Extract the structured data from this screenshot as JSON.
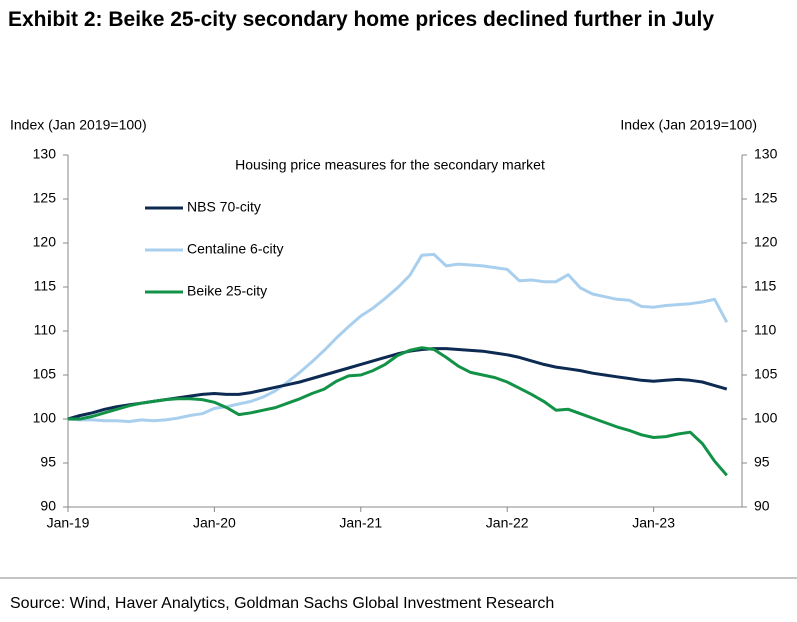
{
  "chart_data": {
    "type": "line",
    "title": "Exhibit 2: Beike 25-city secondary home prices declined further in July",
    "annotation": "Housing price measures for the secondary market",
    "ylabel": "Index (Jan 2019=100)",
    "y2label": "Index (Jan 2019=100)",
    "source": "Source: Wind, Haver Analytics, Goldman Sachs Global Investment Research",
    "categories": [
      "Jan-19",
      null,
      null,
      null,
      null,
      null,
      null,
      null,
      null,
      null,
      null,
      null,
      "Jan-20",
      null,
      null,
      null,
      null,
      null,
      null,
      null,
      null,
      null,
      null,
      null,
      "Jan-21",
      null,
      null,
      null,
      null,
      null,
      null,
      null,
      null,
      null,
      null,
      null,
      "Jan-22",
      null,
      null,
      null,
      null,
      null,
      null,
      null,
      null,
      null,
      null,
      null,
      "Jan-23",
      null,
      null,
      null,
      null,
      null,
      null
    ],
    "ylim": [
      90,
      130
    ],
    "yticks": [
      90,
      95,
      100,
      105,
      110,
      115,
      120,
      125,
      130
    ],
    "y2lim": [
      90,
      130
    ],
    "y2ticks": [
      90,
      95,
      100,
      105,
      110,
      115,
      120,
      125,
      130
    ],
    "grid": false,
    "series": [
      {
        "name": "NBS 70-city",
        "color": "#0d2b52",
        "values": [
          100,
          100.4,
          100.7,
          101.1,
          101.4,
          101.6,
          101.8,
          102.0,
          102.2,
          102.4,
          102.6,
          102.8,
          102.9,
          102.8,
          102.8,
          103.0,
          103.3,
          103.6,
          103.9,
          104.2,
          104.6,
          105.0,
          105.4,
          105.8,
          106.2,
          106.6,
          107.0,
          107.4,
          107.7,
          107.9,
          108.0,
          108.0,
          107.9,
          107.8,
          107.7,
          107.5,
          107.3,
          107.0,
          106.6,
          106.2,
          105.9,
          105.7,
          105.5,
          105.2,
          105.0,
          104.8,
          104.6,
          104.4,
          104.3,
          104.4,
          104.5,
          104.4,
          104.2,
          103.8,
          103.4
        ]
      },
      {
        "name": "Centaline 6-city",
        "color": "#a9cfee",
        "values": [
          100,
          99.9,
          99.9,
          99.8,
          99.8,
          99.7,
          99.9,
          99.8,
          99.9,
          100.1,
          100.4,
          100.6,
          101.2,
          101.4,
          101.7,
          102.0,
          102.5,
          103.2,
          104.2,
          105.3,
          106.5,
          107.8,
          109.2,
          110.5,
          111.7,
          112.6,
          113.7,
          114.9,
          116.3,
          118.6,
          118.7,
          117.4,
          117.6,
          117.5,
          117.4,
          117.2,
          117.0,
          115.7,
          115.8,
          115.6,
          115.6,
          116.4,
          114.9,
          114.2,
          113.9,
          113.6,
          113.5,
          112.8,
          112.7,
          112.9,
          113.0,
          113.1,
          113.3,
          113.6,
          111.0
        ]
      },
      {
        "name": "Beike 25-city",
        "color": "#129247",
        "values": [
          100,
          100.0,
          100.3,
          100.7,
          101.1,
          101.5,
          101.8,
          102.0,
          102.2,
          102.3,
          102.3,
          102.2,
          101.9,
          101.3,
          100.5,
          100.7,
          101.0,
          101.3,
          101.8,
          102.3,
          102.9,
          103.4,
          104.3,
          104.9,
          105.0,
          105.5,
          106.2,
          107.2,
          107.8,
          108.1,
          107.9,
          107.0,
          106.0,
          105.3,
          105.0,
          104.7,
          104.2,
          103.5,
          102.8,
          102.0,
          101.0,
          101.1,
          100.6,
          100.1,
          99.6,
          99.1,
          98.7,
          98.2,
          97.9,
          98.0,
          98.3,
          98.5,
          97.2,
          95.2,
          93.6
        ]
      }
    ]
  }
}
